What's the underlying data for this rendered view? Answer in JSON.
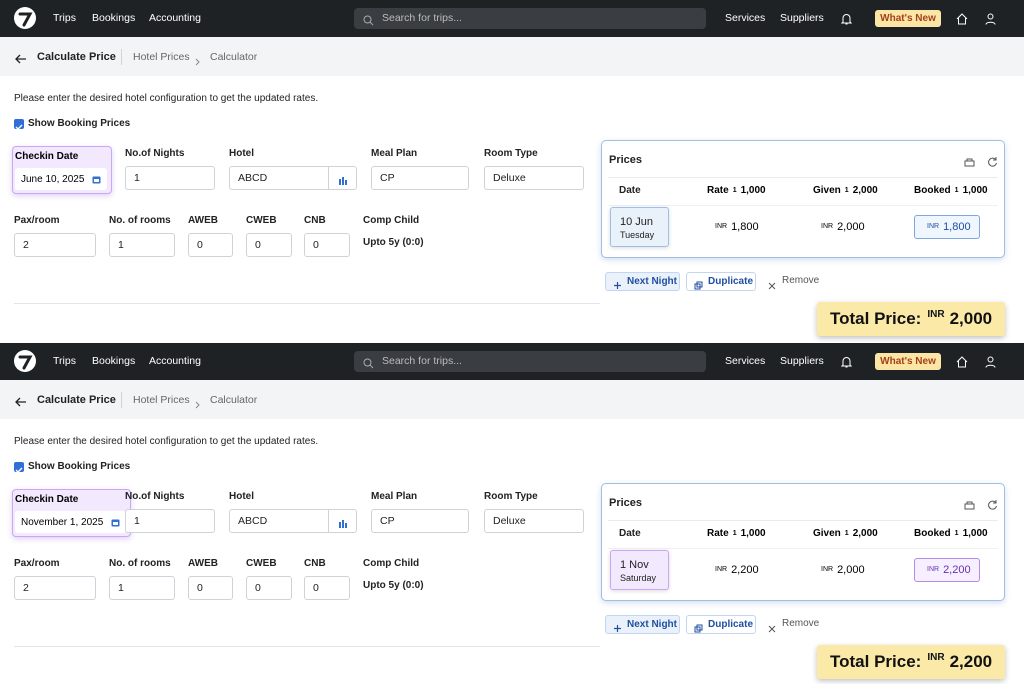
{
  "panels": [
    {
      "nav": {
        "links": [
          "Trips",
          "Bookings",
          "Accounting"
        ],
        "search": "Search for trips...",
        "right": [
          "Services",
          "Suppliers"
        ],
        "whats_new": "What's New"
      },
      "breadcrumb": {
        "title": "Calculate Price",
        "items": [
          "Hotel Prices",
          "Calculator"
        ]
      },
      "instructions": "Please enter the desired hotel configuration to get the updated rates.",
      "show_booking_prices": "Show Booking Prices",
      "fields": [
        {
          "label": "Checkin Date",
          "value": "June 10, 2025"
        },
        {
          "label": "No.of Nights",
          "value": "1"
        },
        {
          "label": "Hotel",
          "value": "ABCD"
        },
        {
          "label": "Meal Plan",
          "value": "CP"
        },
        {
          "label": "Room Type",
          "value": "Deluxe"
        },
        {
          "label": "Pax/room",
          "value": "2"
        },
        {
          "label": "No. of rooms",
          "value": "1"
        },
        {
          "label": "AWEB",
          "value": "0"
        },
        {
          "label": "CWEB",
          "value": "0"
        },
        {
          "label": "CNB",
          "value": "0"
        },
        {
          "label": "Comp Child",
          "value": "Upto 5y (0:0)"
        }
      ],
      "prices": {
        "title": "Prices",
        "columns": [
          {
            "label": "Date"
          },
          {
            "label": "Rate",
            "sup": "1",
            "amount": "1,000"
          },
          {
            "label": "Given",
            "sup": "1",
            "amount": "2,000"
          },
          {
            "label": "Booked",
            "sup": "1",
            "amount": "1,000"
          }
        ],
        "row": {
          "date": "10 Jun",
          "day": "Tuesday",
          "rate": {
            "currency": "INR",
            "amount": "1,800"
          },
          "given": {
            "currency": "INR",
            "amount": "2,000"
          },
          "booked": {
            "currency": "INR",
            "amount": "1,800"
          }
        }
      },
      "actions": [
        "Next Night",
        "Duplicate",
        "Remove"
      ],
      "total": {
        "label": "Total Price:",
        "currency": "INR",
        "amount": "2,000"
      }
    },
    {
      "nav": {
        "links": [
          "Trips",
          "Bookings",
          "Accounting"
        ],
        "search": "Search for trips...",
        "right": [
          "Services",
          "Suppliers"
        ],
        "whats_new": "What's New"
      },
      "breadcrumb": {
        "title": "Calculate Price",
        "items": [
          "Hotel Prices",
          "Calculator"
        ]
      },
      "instructions": "Please enter the desired hotel configuration to get the updated rates.",
      "show_booking_prices": "Show Booking Prices",
      "fields": [
        {
          "label": "Checkin Date",
          "value": "November 1, 2025"
        },
        {
          "label": "No.of Nights",
          "value": "1"
        },
        {
          "label": "Hotel",
          "value": "ABCD"
        },
        {
          "label": "Meal Plan",
          "value": "CP"
        },
        {
          "label": "Room Type",
          "value": "Deluxe"
        },
        {
          "label": "Pax/room",
          "value": "2"
        },
        {
          "label": "No. of rooms",
          "value": "1"
        },
        {
          "label": "AWEB",
          "value": "0"
        },
        {
          "label": "CWEB",
          "value": "0"
        },
        {
          "label": "CNB",
          "value": "0"
        },
        {
          "label": "Comp Child",
          "value": "Upto 5y (0:0)"
        }
      ],
      "prices": {
        "title": "Prices",
        "columns": [
          {
            "label": "Date"
          },
          {
            "label": "Rate",
            "sup": "1",
            "amount": "1,000"
          },
          {
            "label": "Given",
            "sup": "1",
            "amount": "2,000"
          },
          {
            "label": "Booked",
            "sup": "1",
            "amount": "1,000"
          }
        ],
        "row": {
          "date": "1 Nov",
          "day": "Saturday",
          "rate": {
            "currency": "INR",
            "amount": "2,200"
          },
          "given": {
            "currency": "INR",
            "amount": "2,000"
          },
          "booked": {
            "currency": "INR",
            "amount": "2,200"
          }
        }
      },
      "actions": [
        "Next Night",
        "Duplicate",
        "Remove"
      ],
      "total": {
        "label": "Total Price:",
        "currency": "INR",
        "amount": "2,200"
      }
    }
  ]
}
